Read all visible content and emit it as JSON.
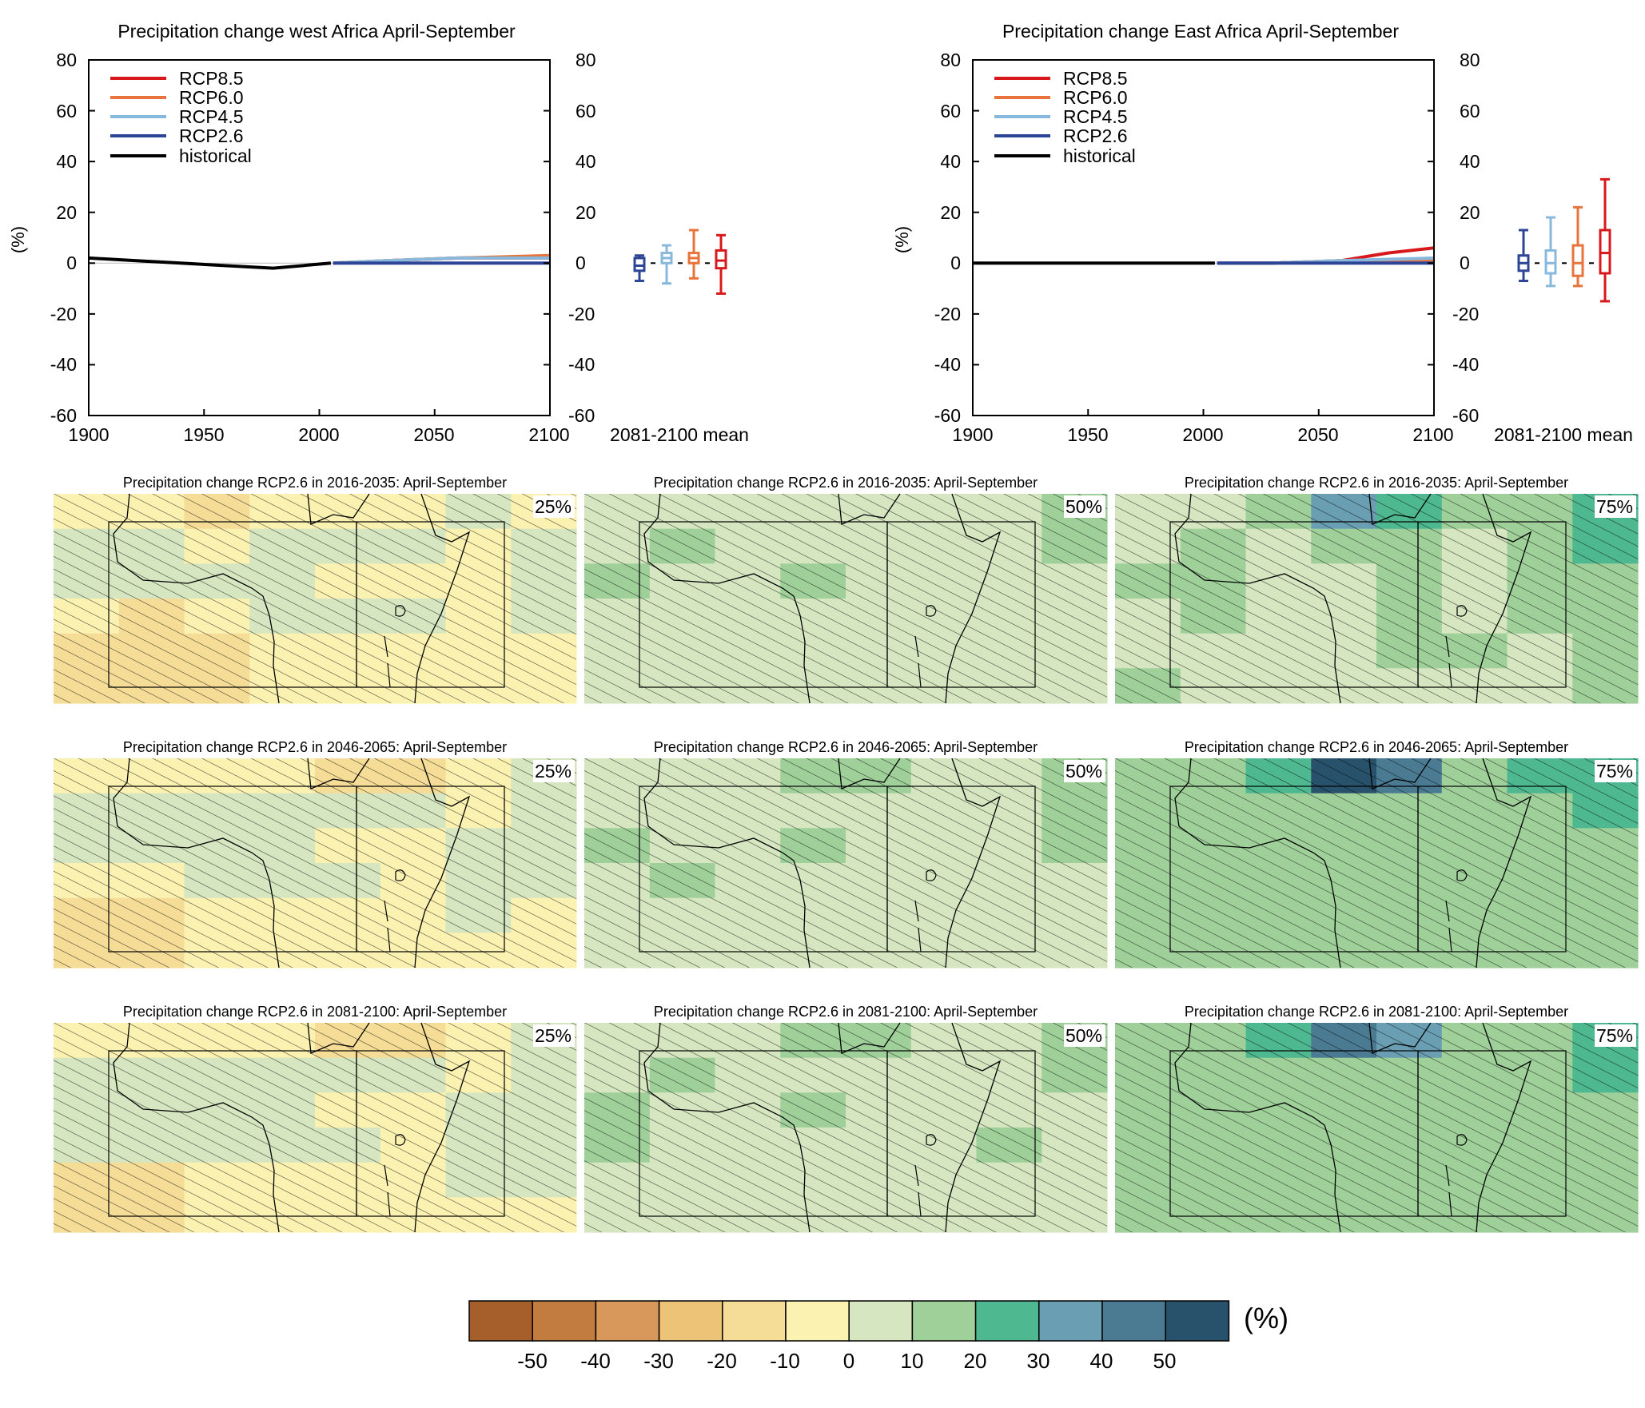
{
  "colors": {
    "rcp85": "#d7191c",
    "rcp60": "#e8743b",
    "rcp45": "#88b9dc",
    "rcp26": "#2c4596",
    "historical": "#000000",
    "model_grey": "#8c8c8c",
    "hatch": "#000000"
  },
  "chart_data": [
    {
      "type": "line",
      "title": "Precipitation change west Africa April-September",
      "ylabel": "(%)",
      "x_ticks": [
        "1900",
        "1950",
        "2000",
        "2050",
        "2100"
      ],
      "y_ticks": [
        "80",
        "60",
        "40",
        "20",
        "0",
        "-20",
        "-40",
        "-60"
      ],
      "xlim": [
        1900,
        2100
      ],
      "ylim": [
        -60,
        80
      ],
      "legend": {
        "position": "top-left",
        "entries": [
          "RCP8.5",
          "RCP6.0",
          "RCP4.5",
          "RCP2.6",
          "historical"
        ]
      },
      "series": [
        {
          "name": "historical",
          "x": [
            1900,
            1920,
            1940,
            1960,
            1980,
            2005
          ],
          "y": [
            2,
            1,
            0,
            -1,
            -2,
            0
          ]
        },
        {
          "name": "RCP2.6",
          "x": [
            2006,
            2030,
            2060,
            2100
          ],
          "y": [
            0,
            0,
            0,
            0
          ]
        },
        {
          "name": "RCP4.5",
          "x": [
            2006,
            2030,
            2060,
            2100
          ],
          "y": [
            0,
            1,
            2,
            2
          ]
        },
        {
          "name": "RCP6.0",
          "x": [
            2006,
            2030,
            2060,
            2100
          ],
          "y": [
            0,
            1,
            2,
            3
          ]
        },
        {
          "name": "RCP8.5",
          "x": [
            2006,
            2030,
            2060,
            2100
          ],
          "y": [
            0,
            1,
            2,
            2
          ]
        }
      ],
      "boxplot": {
        "label": "2081-2100 mean",
        "boxes": [
          {
            "name": "RCP2.6",
            "min": -7,
            "q1": -3,
            "median": -1,
            "q3": 2,
            "max": 3
          },
          {
            "name": "RCP4.5",
            "min": -8,
            "q1": 0,
            "median": 2,
            "q3": 4,
            "max": 7
          },
          {
            "name": "RCP6.0",
            "min": -6,
            "q1": 0,
            "median": 2,
            "q3": 4,
            "max": 13
          },
          {
            "name": "RCP8.5",
            "min": -12,
            "q1": -2,
            "median": 1,
            "q3": 5,
            "max": 11
          }
        ]
      }
    },
    {
      "type": "line",
      "title": "Precipitation change East Africa April-September",
      "ylabel": "(%)",
      "x_ticks": [
        "1900",
        "1950",
        "2000",
        "2050",
        "2100"
      ],
      "y_ticks": [
        "80",
        "60",
        "40",
        "20",
        "0",
        "-20",
        "-40",
        "-60"
      ],
      "xlim": [
        1900,
        2100
      ],
      "ylim": [
        -60,
        80
      ],
      "legend": {
        "position": "top-left",
        "entries": [
          "RCP8.5",
          "RCP6.0",
          "RCP4.5",
          "RCP2.6",
          "historical"
        ]
      },
      "series": [
        {
          "name": "historical",
          "x": [
            1900,
            1920,
            1940,
            1960,
            1980,
            2005
          ],
          "y": [
            0,
            0,
            0,
            0,
            0,
            0
          ]
        },
        {
          "name": "RCP2.6",
          "x": [
            2006,
            2030,
            2060,
            2100
          ],
          "y": [
            0,
            0,
            0,
            0
          ]
        },
        {
          "name": "RCP4.5",
          "x": [
            2006,
            2030,
            2060,
            2100
          ],
          "y": [
            0,
            0,
            1,
            2
          ]
        },
        {
          "name": "RCP6.0",
          "x": [
            2006,
            2030,
            2060,
            2100
          ],
          "y": [
            0,
            0,
            1,
            1
          ]
        },
        {
          "name": "RCP8.5",
          "x": [
            2006,
            2030,
            2060,
            2080,
            2100
          ],
          "y": [
            0,
            0,
            1,
            4,
            6
          ]
        }
      ],
      "boxplot": {
        "label": "2081-2100 mean",
        "boxes": [
          {
            "name": "RCP2.6",
            "min": -7,
            "q1": -3,
            "median": 0,
            "q3": 3,
            "max": 13
          },
          {
            "name": "RCP4.5",
            "min": -9,
            "q1": -4,
            "median": 0,
            "q3": 5,
            "max": 18
          },
          {
            "name": "RCP6.0",
            "min": -9,
            "q1": -5,
            "median": 0,
            "q3": 7,
            "max": 22
          },
          {
            "name": "RCP8.5",
            "min": -15,
            "q1": -4,
            "median": 4,
            "q3": 13,
            "max": 33
          }
        ]
      }
    },
    {
      "type": "heatmap",
      "colorbar": {
        "unit": "(%)",
        "tick_labels": [
          "-50",
          "-40",
          "-30",
          "-20",
          "-10",
          "0",
          "10",
          "20",
          "30",
          "40",
          "50"
        ],
        "colors": [
          "#a65f2b",
          "#c27c3f",
          "#d9985b",
          "#edc477",
          "#f5dc97",
          "#fbf2b2",
          "#d5e6c0",
          "#9fd09a",
          "#4eb891",
          "#6a9fb3",
          "#4b7b93",
          "#28526b"
        ]
      },
      "panels": [
        {
          "title": "Precipitation change RCP2.6 in 2016-2035: April-September",
          "percentile": "25%",
          "values": [
            [
              -10,
              -10,
              -15,
              -5,
              -5,
              -5,
              0,
              -5
            ],
            [
              0,
              0,
              -5,
              0,
              0,
              0,
              -5,
              5
            ],
            [
              0,
              0,
              0,
              0,
              -5,
              -5,
              -5,
              0
            ],
            [
              -10,
              -15,
              -5,
              0,
              0,
              0,
              -5,
              0
            ],
            [
              -15,
              -20,
              -15,
              -10,
              -5,
              -5,
              -5,
              -5
            ],
            [
              -20,
              -15,
              -15,
              -10,
              -10,
              -10,
              -5,
              -5
            ]
          ]
        },
        {
          "title": "Precipitation change RCP2.6 in 2016-2035: April-September",
          "percentile": "50%",
          "values": [
            [
              5,
              5,
              0,
              5,
              5,
              5,
              5,
              15
            ],
            [
              5,
              10,
              5,
              5,
              0,
              5,
              5,
              15
            ],
            [
              10,
              5,
              5,
              10,
              0,
              0,
              5,
              5
            ],
            [
              5,
              0,
              5,
              5,
              5,
              0,
              5,
              5
            ],
            [
              0,
              5,
              5,
              0,
              5,
              5,
              5,
              5
            ],
            [
              5,
              5,
              5,
              5,
              5,
              5,
              5,
              5
            ]
          ]
        },
        {
          "title": "Precipitation change RCP2.6 in 2016-2035: April-September",
          "percentile": "75%",
          "values": [
            [
              5,
              5,
              15,
              35,
              25,
              15,
              10,
              25
            ],
            [
              5,
              10,
              5,
              10,
              10,
              5,
              10,
              25
            ],
            [
              10,
              15,
              5,
              5,
              10,
              5,
              10,
              10
            ],
            [
              5,
              10,
              5,
              5,
              10,
              5,
              10,
              10
            ],
            [
              5,
              5,
              5,
              5,
              10,
              10,
              5,
              10
            ],
            [
              10,
              0,
              5,
              5,
              5,
              5,
              5,
              10
            ]
          ]
        },
        {
          "title": "Precipitation change RCP2.6 in 2046-2065: April-September",
          "percentile": "25%",
          "values": [
            [
              -5,
              -5,
              -10,
              -5,
              -15,
              -15,
              -5,
              0
            ],
            [
              0,
              0,
              0,
              0,
              0,
              0,
              -5,
              5
            ],
            [
              5,
              0,
              0,
              0,
              -10,
              -10,
              5,
              5
            ],
            [
              -5,
              -5,
              0,
              0,
              0,
              -5,
              0,
              0
            ],
            [
              -15,
              -20,
              -10,
              -5,
              -10,
              -10,
              0,
              -5
            ],
            [
              -15,
              -15,
              -10,
              -10,
              -10,
              -10,
              -5,
              -5
            ]
          ]
        },
        {
          "title": "Precipitation change RCP2.6 in 2046-2065: April-September",
          "percentile": "50%",
          "values": [
            [
              5,
              0,
              5,
              15,
              15,
              5,
              5,
              15
            ],
            [
              5,
              5,
              0,
              5,
              5,
              5,
              5,
              15
            ],
            [
              10,
              5,
              5,
              10,
              0,
              0,
              5,
              15
            ],
            [
              5,
              10,
              5,
              5,
              5,
              0,
              5,
              5
            ],
            [
              0,
              5,
              5,
              5,
              5,
              5,
              5,
              5
            ],
            [
              5,
              5,
              5,
              5,
              5,
              5,
              5,
              5
            ]
          ]
        },
        {
          "title": "Precipitation change RCP2.6 in 2046-2065: April-September",
          "percentile": "75%",
          "values": [
            [
              15,
              15,
              25,
              55,
              45,
              15,
              25,
              25
            ],
            [
              15,
              10,
              10,
              10,
              15,
              10,
              15,
              25
            ],
            [
              10,
              15,
              10,
              10,
              10,
              15,
              15,
              15
            ],
            [
              15,
              10,
              10,
              10,
              10,
              10,
              15,
              15
            ],
            [
              15,
              10,
              10,
              10,
              15,
              15,
              15,
              15
            ],
            [
              10,
              10,
              10,
              10,
              10,
              10,
              15,
              10
            ]
          ]
        },
        {
          "title": "Precipitation change RCP2.6 in 2081-2100: April-September",
          "percentile": "25%",
          "values": [
            [
              -5,
              -5,
              -10,
              -5,
              -15,
              -15,
              -5,
              0
            ],
            [
              0,
              0,
              0,
              0,
              0,
              0,
              -5,
              5
            ],
            [
              5,
              0,
              0,
              0,
              -5,
              -5,
              0,
              5
            ],
            [
              5,
              0,
              0,
              0,
              0,
              -5,
              0,
              0
            ],
            [
              -15,
              -20,
              -10,
              -5,
              -5,
              -10,
              0,
              0
            ],
            [
              -15,
              -15,
              -10,
              -10,
              -10,
              -10,
              -5,
              -5
            ]
          ]
        },
        {
          "title": "Precipitation change RCP2.6 in 2081-2100: April-September",
          "percentile": "50%",
          "values": [
            [
              5,
              0,
              5,
              15,
              15,
              5,
              5,
              15
            ],
            [
              5,
              10,
              5,
              5,
              5,
              5,
              5,
              15
            ],
            [
              10,
              5,
              5,
              10,
              0,
              0,
              5,
              5
            ],
            [
              10,
              5,
              5,
              5,
              5,
              0,
              10,
              5
            ],
            [
              5,
              5,
              5,
              5,
              5,
              5,
              5,
              5
            ],
            [
              5,
              5,
              5,
              5,
              5,
              5,
              5,
              5
            ]
          ]
        },
        {
          "title": "Precipitation change RCP2.6 in 2081-2100: April-September",
          "percentile": "75%",
          "values": [
            [
              15,
              15,
              25,
              45,
              35,
              15,
              15,
              25
            ],
            [
              15,
              10,
              10,
              10,
              15,
              10,
              15,
              25
            ],
            [
              15,
              10,
              10,
              10,
              10,
              15,
              15,
              15
            ],
            [
              15,
              15,
              10,
              10,
              10,
              10,
              15,
              15
            ],
            [
              15,
              10,
              10,
              10,
              15,
              15,
              15,
              15
            ],
            [
              10,
              10,
              10,
              10,
              10,
              10,
              15,
              15
            ]
          ]
        }
      ]
    }
  ]
}
